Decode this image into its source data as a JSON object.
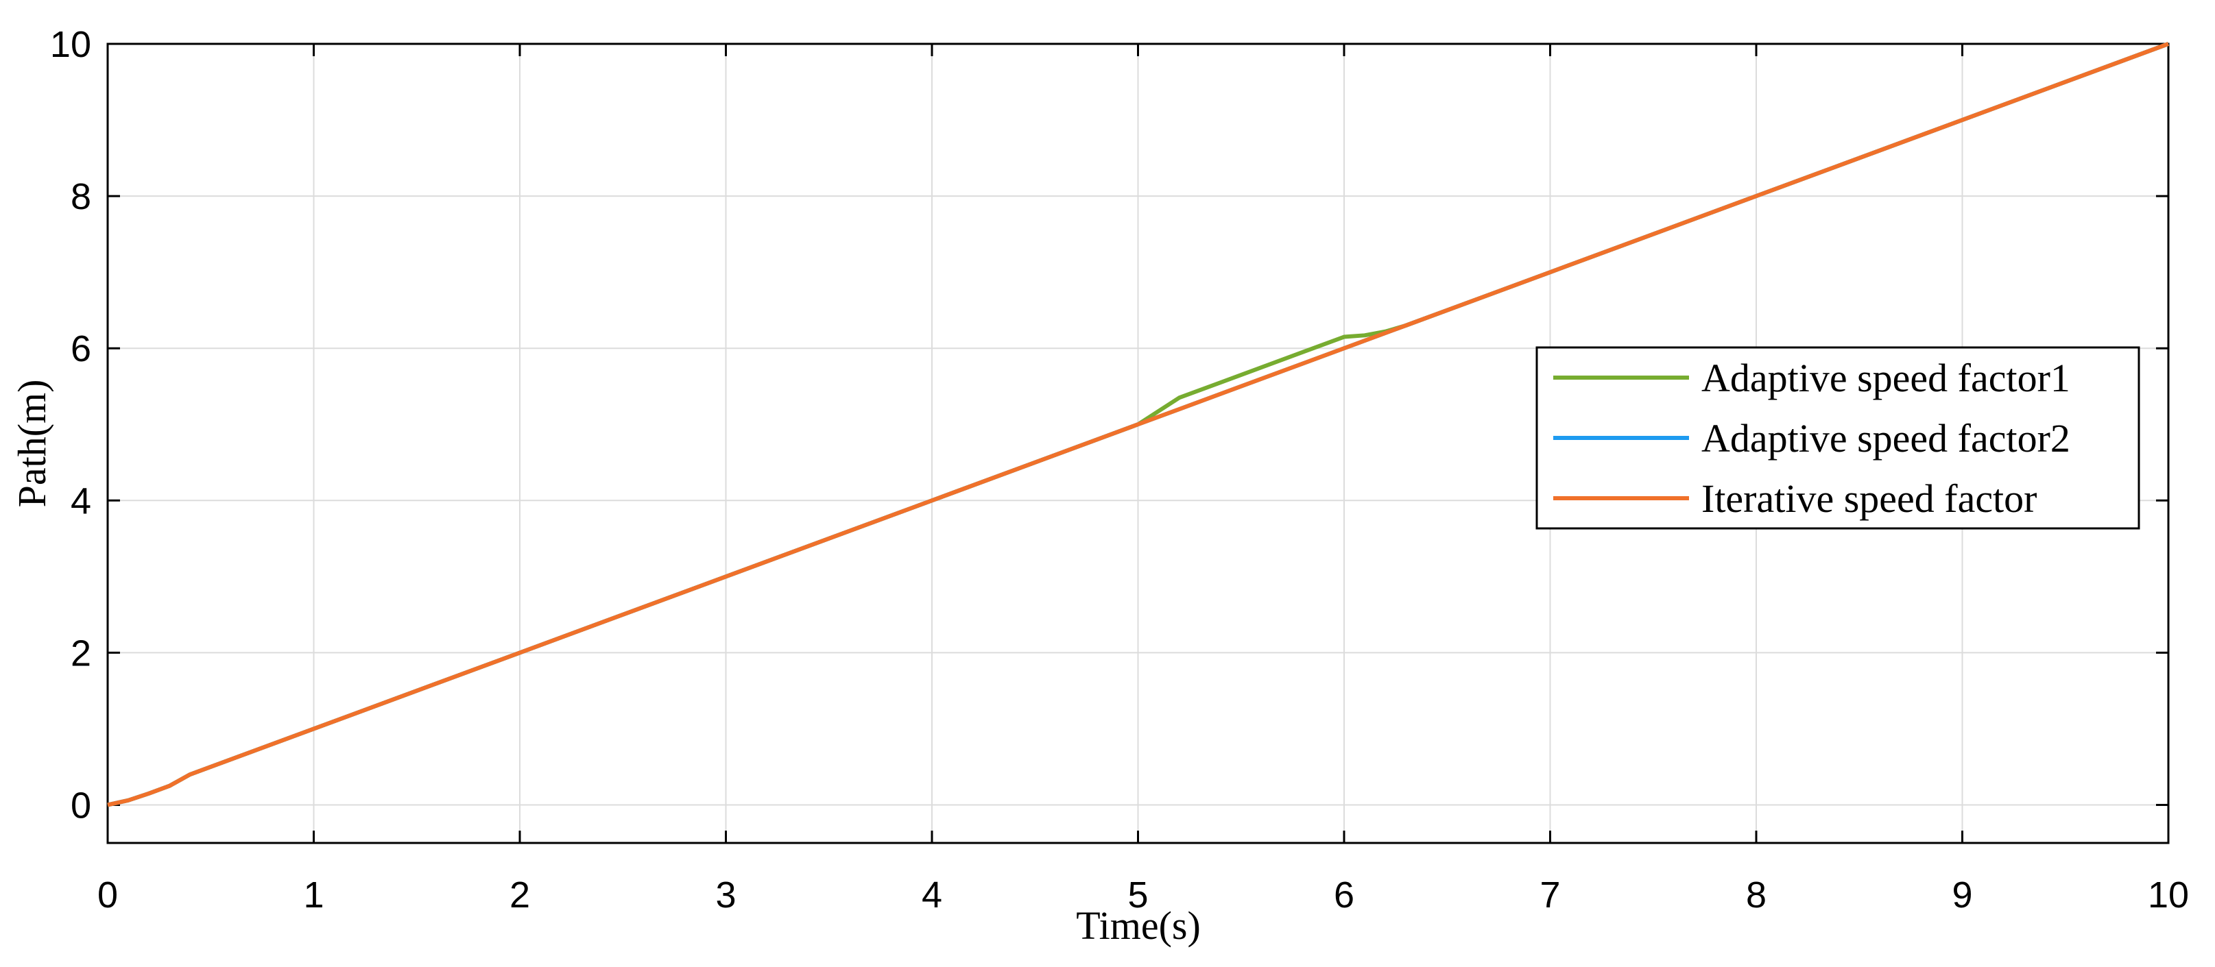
{
  "chart_data": {
    "type": "line",
    "xlabel": "Time(s)",
    "ylabel": "Path(m)",
    "x": [
      0,
      0.1,
      0.2,
      0.3,
      0.4,
      0.5,
      1,
      2,
      3,
      4,
      5,
      5.2,
      5.5,
      6,
      6.1,
      6.2,
      6.3,
      7,
      8,
      9,
      10
    ],
    "series": [
      {
        "name": "Adaptive speed factor1",
        "color": "#77ac30",
        "values": [
          0,
          0.06,
          0.15,
          0.25,
          0.4,
          0.5,
          1,
          2,
          3,
          4,
          5,
          5.35,
          5.65,
          6.15,
          6.17,
          6.22,
          6.3,
          7,
          8,
          9,
          10
        ]
      },
      {
        "name": "Adaptive speed factor2",
        "color": "#1e9bf0",
        "values": [
          0,
          0.06,
          0.15,
          0.25,
          0.4,
          0.5,
          1,
          2,
          3,
          4,
          5,
          5.2,
          5.5,
          6,
          6.1,
          6.2,
          6.3,
          7,
          8,
          9,
          10
        ]
      },
      {
        "name": "Iterative speed factor",
        "color": "#f0712a",
        "values": [
          0,
          0.06,
          0.15,
          0.25,
          0.4,
          0.5,
          1,
          2,
          3,
          4,
          5,
          5.2,
          5.5,
          6,
          6.1,
          6.2,
          6.3,
          7,
          8,
          9,
          10
        ]
      }
    ],
    "xlim": [
      0,
      10
    ],
    "xticks": [
      0,
      1,
      2,
      3,
      4,
      5,
      6,
      7,
      8,
      9,
      10
    ],
    "ylim": [
      -0.5,
      10
    ],
    "yticks": [
      0,
      2,
      4,
      6,
      8,
      10
    ],
    "grid": true,
    "legend": "right"
  }
}
